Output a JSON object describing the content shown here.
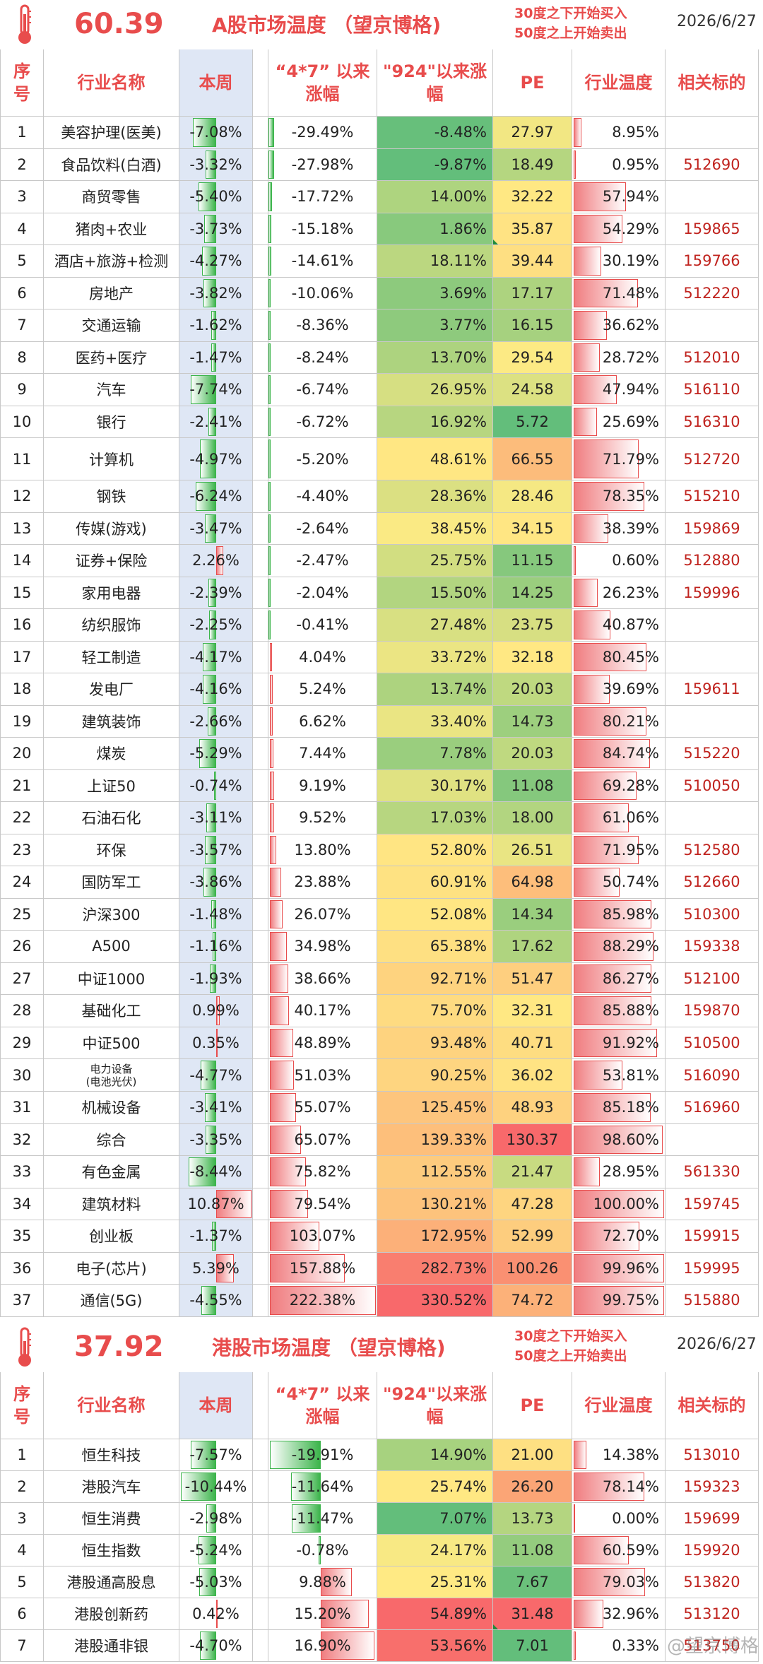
{
  "a": {
    "temperature": "60.39",
    "title": "A股市场温度 （望京博格)",
    "rule_line1": "30度之下开始买入",
    "rule_line2": "50度之上开始卖出",
    "date": "2026/6/27",
    "headers": {
      "idx": "序号",
      "name": "行业名称",
      "week": "本周",
      "since47": "“4*7” 以来涨幅",
      "since924": "\"924\"以来涨幅",
      "pe": "PE",
      "temp": "行业温度",
      "code": "相关标的"
    },
    "rows": [
      {
        "idx": "1",
        "name": "美容护理(医美)",
        "week": "-7.08%",
        "since47": "-29.49%",
        "since924": "-8.48%",
        "pe": "27.97",
        "temp": "8.95%",
        "code": ""
      },
      {
        "idx": "2",
        "name": "食品饮料(白酒)",
        "week": "-3.32%",
        "since47": "-27.98%",
        "since924": "-9.87%",
        "pe": "18.49",
        "temp": "0.95%",
        "code": "512690"
      },
      {
        "idx": "3",
        "name": "商贸零售",
        "week": "-5.40%",
        "since47": "-17.72%",
        "since924": "14.00%",
        "pe": "32.22",
        "temp": "57.94%",
        "code": ""
      },
      {
        "idx": "4",
        "name": "猪肉+农业",
        "week": "-3.73%",
        "since47": "-15.18%",
        "since924": "1.86%",
        "pe": "35.87",
        "temp": "54.29%",
        "code": "159865"
      },
      {
        "idx": "5",
        "name": "酒店+旅游+检测",
        "week": "-4.27%",
        "since47": "-14.61%",
        "since924": "18.11%",
        "pe": "39.44",
        "temp": "30.19%",
        "code": "159766"
      },
      {
        "idx": "6",
        "name": "房地产",
        "week": "-3.82%",
        "since47": "-10.06%",
        "since924": "3.69%",
        "pe": "17.17",
        "temp": "71.48%",
        "code": "512220"
      },
      {
        "idx": "7",
        "name": "交通运输",
        "week": "-1.62%",
        "since47": "-8.36%",
        "since924": "3.77%",
        "pe": "16.15",
        "temp": "36.62%",
        "code": ""
      },
      {
        "idx": "8",
        "name": "医药+医疗",
        "week": "-1.47%",
        "since47": "-8.24%",
        "since924": "13.70%",
        "pe": "29.54",
        "temp": "28.72%",
        "code": "512010"
      },
      {
        "idx": "9",
        "name": "汽车",
        "week": "-7.74%",
        "since47": "-6.74%",
        "since924": "26.95%",
        "pe": "24.58",
        "temp": "47.94%",
        "code": "516110"
      },
      {
        "idx": "10",
        "name": "银行",
        "week": "-2.41%",
        "since47": "-6.72%",
        "since924": "16.92%",
        "pe": "5.72",
        "temp": "25.69%",
        "code": "516310"
      },
      {
        "idx": "11",
        "name": "计算机",
        "week": "-4.97%",
        "since47": "-5.20%",
        "since924": "48.61%",
        "pe": "66.55",
        "temp": "71.79%",
        "code": "512720"
      },
      {
        "idx": "12",
        "name": "钢铁",
        "week": "-6.24%",
        "since47": "-4.40%",
        "since924": "28.36%",
        "pe": "28.46",
        "temp": "78.35%",
        "code": "515210"
      },
      {
        "idx": "13",
        "name": "传媒(游戏)",
        "week": "-3.47%",
        "since47": "-2.64%",
        "since924": "38.45%",
        "pe": "34.15",
        "temp": "38.39%",
        "code": "159869"
      },
      {
        "idx": "14",
        "name": "证券+保险",
        "week": "2.26%",
        "since47": "-2.47%",
        "since924": "25.75%",
        "pe": "11.15",
        "temp": "0.60%",
        "code": "512880"
      },
      {
        "idx": "15",
        "name": "家用电器",
        "week": "-2.39%",
        "since47": "-2.04%",
        "since924": "15.50%",
        "pe": "14.25",
        "temp": "26.23%",
        "code": "159996"
      },
      {
        "idx": "16",
        "name": "纺织服饰",
        "week": "-2.25%",
        "since47": "-0.41%",
        "since924": "27.48%",
        "pe": "23.75",
        "temp": "40.87%",
        "code": ""
      },
      {
        "idx": "17",
        "name": "轻工制造",
        "week": "-4.17%",
        "since47": "4.04%",
        "since924": "33.72%",
        "pe": "32.18",
        "temp": "80.45%",
        "code": ""
      },
      {
        "idx": "18",
        "name": "发电厂",
        "week": "-4.16%",
        "since47": "5.24%",
        "since924": "13.74%",
        "pe": "20.03",
        "temp": "39.69%",
        "code": "159611"
      },
      {
        "idx": "19",
        "name": "建筑装饰",
        "week": "-2.66%",
        "since47": "6.62%",
        "since924": "33.40%",
        "pe": "14.73",
        "temp": "80.21%",
        "code": ""
      },
      {
        "idx": "20",
        "name": "煤炭",
        "week": "-5.29%",
        "since47": "7.44%",
        "since924": "7.78%",
        "pe": "20.03",
        "temp": "84.74%",
        "code": "515220"
      },
      {
        "idx": "21",
        "name": "上证50",
        "week": "-0.74%",
        "since47": "9.19%",
        "since924": "30.17%",
        "pe": "11.08",
        "temp": "69.28%",
        "code": "510050"
      },
      {
        "idx": "22",
        "name": "石油石化",
        "week": "-3.11%",
        "since47": "9.52%",
        "since924": "17.03%",
        "pe": "18.00",
        "temp": "61.06%",
        "code": ""
      },
      {
        "idx": "23",
        "name": "环保",
        "week": "-3.57%",
        "since47": "13.80%",
        "since924": "52.80%",
        "pe": "26.51",
        "temp": "71.95%",
        "code": "512580"
      },
      {
        "idx": "24",
        "name": "国防军工",
        "week": "-3.86%",
        "since47": "23.88%",
        "since924": "60.91%",
        "pe": "64.98",
        "temp": "50.74%",
        "code": "512660"
      },
      {
        "idx": "25",
        "name": "沪深300",
        "week": "-1.48%",
        "since47": "26.07%",
        "since924": "52.08%",
        "pe": "14.34",
        "temp": "85.98%",
        "code": "510300"
      },
      {
        "idx": "26",
        "name": "A500",
        "week": "-1.16%",
        "since47": "34.98%",
        "since924": "65.38%",
        "pe": "17.62",
        "temp": "88.29%",
        "code": "159338"
      },
      {
        "idx": "27",
        "name": "中证1000",
        "week": "-1.93%",
        "since47": "38.66%",
        "since924": "92.71%",
        "pe": "51.47",
        "temp": "86.27%",
        "code": "512100"
      },
      {
        "idx": "28",
        "name": "基础化工",
        "week": "0.99%",
        "since47": "40.17%",
        "since924": "75.70%",
        "pe": "32.31",
        "temp": "85.88%",
        "code": "159870"
      },
      {
        "idx": "29",
        "name": "中证500",
        "week": "0.35%",
        "since47": "48.89%",
        "since924": "93.48%",
        "pe": "40.71",
        "temp": "91.92%",
        "code": "510500"
      },
      {
        "idx": "30",
        "name": "电力设备(电池光伏)",
        "name1": "电力设备",
        "name2": "(电池光伏)",
        "week": "-4.77%",
        "since47": "51.03%",
        "since924": "90.25%",
        "pe": "36.02",
        "temp": "53.81%",
        "code": "516090"
      },
      {
        "idx": "31",
        "name": "机械设备",
        "week": "-3.41%",
        "since47": "55.07%",
        "since924": "125.45%",
        "pe": "48.93",
        "temp": "85.18%",
        "code": "516960"
      },
      {
        "idx": "32",
        "name": "综合",
        "week": "-3.35%",
        "since47": "65.07%",
        "since924": "139.33%",
        "pe": "130.37",
        "temp": "98.60%",
        "code": ""
      },
      {
        "idx": "33",
        "name": "有色金属",
        "week": "-8.44%",
        "since47": "75.82%",
        "since924": "112.55%",
        "pe": "21.47",
        "temp": "28.95%",
        "code": "561330"
      },
      {
        "idx": "34",
        "name": "建筑材料",
        "week": "10.87%",
        "since47": "79.54%",
        "since924": "130.21%",
        "pe": "47.28",
        "temp": "100.00%",
        "code": "159745"
      },
      {
        "idx": "35",
        "name": "创业板",
        "week": "-1.37%",
        "since47": "103.07%",
        "since924": "172.95%",
        "pe": "52.99",
        "temp": "72.70%",
        "code": "159915"
      },
      {
        "idx": "36",
        "name": "电子(芯片)",
        "week": "5.39%",
        "since47": "157.88%",
        "since924": "282.73%",
        "pe": "100.26",
        "temp": "99.96%",
        "code": "159995"
      },
      {
        "idx": "37",
        "name": "通信(5G)",
        "week": "-4.55%",
        "since47": "222.38%",
        "since924": "330.52%",
        "pe": "74.72",
        "temp": "99.75%",
        "code": "515880"
      }
    ]
  },
  "h": {
    "temperature": "37.92",
    "title": "港股市场温度 （望京博格)",
    "rule_line1": "30度之下开始买入",
    "rule_line2": "50度之上开始卖出",
    "date": "2026/6/27",
    "headers": {
      "idx": "序号",
      "name": "行业名称",
      "week": "本周",
      "since47": "“4*7” 以来涨幅",
      "since924": "\"924\"以来涨幅",
      "pe": "PE",
      "temp": "行业温度",
      "code": "相关标的"
    },
    "rows": [
      {
        "idx": "1",
        "name": "恒生科技",
        "week": "-7.57%",
        "since47": "-19.91%",
        "since924": "14.90%",
        "pe": "21.00",
        "temp": "14.38%",
        "code": "513010"
      },
      {
        "idx": "2",
        "name": "港股汽车",
        "week": "-10.44%",
        "since47": "-11.64%",
        "since924": "25.74%",
        "pe": "26.20",
        "temp": "78.14%",
        "code": "159323"
      },
      {
        "idx": "3",
        "name": "恒生消费",
        "week": "-2.98%",
        "since47": "-11.47%",
        "since924": "7.07%",
        "pe": "13.73",
        "temp": "0.00%",
        "code": "159699"
      },
      {
        "idx": "4",
        "name": "恒生指数",
        "week": "-5.24%",
        "since47": "-0.78%",
        "since924": "24.17%",
        "pe": "11.08",
        "temp": "60.59%",
        "code": "159920"
      },
      {
        "idx": "5",
        "name": "港股通高股息",
        "week": "-5.03%",
        "since47": "9.88%",
        "since924": "25.31%",
        "pe": "7.67",
        "temp": "79.03%",
        "code": "513820"
      },
      {
        "idx": "6",
        "name": "港股创新药",
        "week": "0.42%",
        "since47": "15.20%",
        "since924": "54.89%",
        "pe": "31.48",
        "temp": "32.96%",
        "code": "513120"
      },
      {
        "idx": "7",
        "name": "港股通非银",
        "week": "-4.70%",
        "since47": "16.90%",
        "since924": "53.56%",
        "pe": "7.01",
        "temp": "0.33%",
        "code": "513750"
      }
    ]
  },
  "watermark": "@望京博格",
  "colors": {
    "accent": "#e84c4c",
    "code": "#c0231e",
    "week_bg": "#dfe7f5",
    "bar_green": "#3cb44b",
    "bar_red": "#f07d80"
  }
}
